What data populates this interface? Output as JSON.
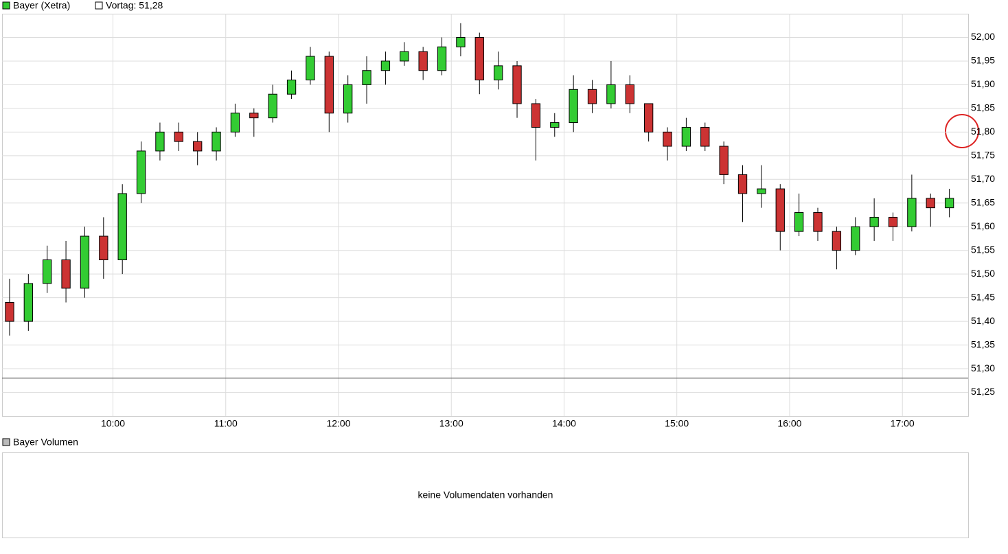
{
  "chart_data": {
    "type": "candlestick",
    "series": [
      {
        "name": "Bayer (Xetra)",
        "color": "#33cc33",
        "open": [
          51.44,
          51.4,
          51.48,
          51.53,
          51.47,
          51.58,
          51.53,
          51.67,
          51.76,
          51.8,
          51.78,
          51.76,
          51.8,
          51.84,
          51.83,
          51.88,
          51.91,
          51.96,
          51.84,
          51.9,
          51.93,
          51.95,
          51.97,
          51.93,
          51.98,
          52.0,
          51.91,
          51.94,
          51.86,
          51.81,
          51.82,
          51.89,
          51.86,
          51.9,
          51.86,
          51.8,
          51.77,
          51.81,
          51.77,
          51.71,
          51.67,
          51.68,
          51.59,
          51.63,
          51.59,
          51.55,
          51.6,
          51.62,
          51.6,
          51.66,
          51.64
        ],
        "high": [
          51.49,
          51.5,
          51.56,
          51.57,
          51.6,
          51.62,
          51.69,
          51.78,
          51.82,
          51.82,
          51.8,
          51.81,
          51.86,
          51.85,
          51.9,
          51.93,
          51.98,
          51.97,
          51.92,
          51.96,
          51.97,
          51.99,
          51.98,
          52.0,
          52.03,
          52.01,
          51.97,
          51.95,
          51.87,
          51.84,
          51.92,
          51.91,
          51.95,
          51.92,
          51.86,
          51.81,
          51.83,
          51.82,
          51.78,
          51.73,
          51.73,
          51.69,
          51.67,
          51.64,
          51.6,
          51.62,
          51.66,
          51.63,
          51.71,
          51.67,
          51.68
        ],
        "low": [
          51.37,
          51.38,
          51.46,
          51.44,
          51.45,
          51.49,
          51.5,
          51.65,
          51.74,
          51.76,
          51.73,
          51.74,
          51.79,
          51.79,
          51.82,
          51.87,
          51.9,
          51.8,
          51.82,
          51.86,
          51.9,
          51.94,
          51.91,
          51.92,
          51.96,
          51.88,
          51.89,
          51.83,
          51.74,
          51.79,
          51.8,
          51.84,
          51.85,
          51.84,
          51.78,
          51.74,
          51.76,
          51.76,
          51.69,
          51.61,
          51.64,
          51.55,
          51.58,
          51.57,
          51.51,
          51.54,
          51.57,
          51.57,
          51.59,
          51.6,
          51.62
        ],
        "close": [
          51.4,
          51.48,
          51.53,
          51.47,
          51.58,
          51.53,
          51.67,
          51.76,
          51.8,
          51.78,
          51.76,
          51.8,
          51.84,
          51.83,
          51.88,
          51.91,
          51.96,
          51.84,
          51.9,
          51.93,
          51.95,
          51.97,
          51.93,
          51.98,
          52.0,
          51.91,
          51.94,
          51.86,
          51.81,
          51.82,
          51.89,
          51.86,
          51.9,
          51.86,
          51.8,
          51.77,
          51.81,
          51.77,
          51.71,
          51.67,
          51.68,
          51.59,
          51.63,
          51.59,
          51.55,
          51.6,
          51.62,
          51.6,
          51.66,
          51.64,
          51.66
        ]
      }
    ],
    "down_color": "#cc3333",
    "x": [
      545,
      555,
      565,
      575,
      585,
      595,
      605,
      615,
      625,
      635,
      645,
      655,
      665,
      675,
      685,
      695,
      705,
      715,
      725,
      735,
      745,
      755,
      765,
      775,
      785,
      795,
      805,
      815,
      825,
      835,
      845,
      855,
      865,
      875,
      885,
      895,
      905,
      915,
      925,
      935,
      945,
      955,
      965,
      975,
      985,
      995,
      1005,
      1015,
      1025,
      1035,
      1045
    ],
    "xlim": [
      541,
      1055
    ],
    "xticks": [
      {
        "value": 600,
        "label": "10:00"
      },
      {
        "value": 660,
        "label": "11:00"
      },
      {
        "value": 720,
        "label": "12:00"
      },
      {
        "value": 780,
        "label": "13:00"
      },
      {
        "value": 840,
        "label": "14:00"
      },
      {
        "value": 900,
        "label": "15:00"
      },
      {
        "value": 960,
        "label": "16:00"
      },
      {
        "value": 1020,
        "label": "17:00"
      }
    ],
    "ylim": [
      51.2,
      52.05
    ],
    "yticks": [
      {
        "value": 51.25,
        "label": "51,25"
      },
      {
        "value": 51.3,
        "label": "51,30"
      },
      {
        "value": 51.35,
        "label": "51,35"
      },
      {
        "value": 51.4,
        "label": "51,40"
      },
      {
        "value": 51.45,
        "label": "51,45"
      },
      {
        "value": 51.5,
        "label": "51,50"
      },
      {
        "value": 51.55,
        "label": "51,55"
      },
      {
        "value": 51.6,
        "label": "51,60"
      },
      {
        "value": 51.65,
        "label": "51,65"
      },
      {
        "value": 51.7,
        "label": "51,70"
      },
      {
        "value": 51.75,
        "label": "51,75"
      },
      {
        "value": 51.8,
        "label": "51,80"
      },
      {
        "value": 51.85,
        "label": "51,85"
      },
      {
        "value": 51.9,
        "label": "51,90"
      },
      {
        "value": 51.95,
        "label": "51,95"
      },
      {
        "value": 52.0,
        "label": "52,00"
      }
    ],
    "grid": true,
    "reference": {
      "label": "Vortag: 51,28",
      "value": 51.28,
      "color": "#555555"
    },
    "volume_panel": {
      "title": "Bayer Volumen",
      "message": "keine Volumendaten vorhanden"
    }
  }
}
